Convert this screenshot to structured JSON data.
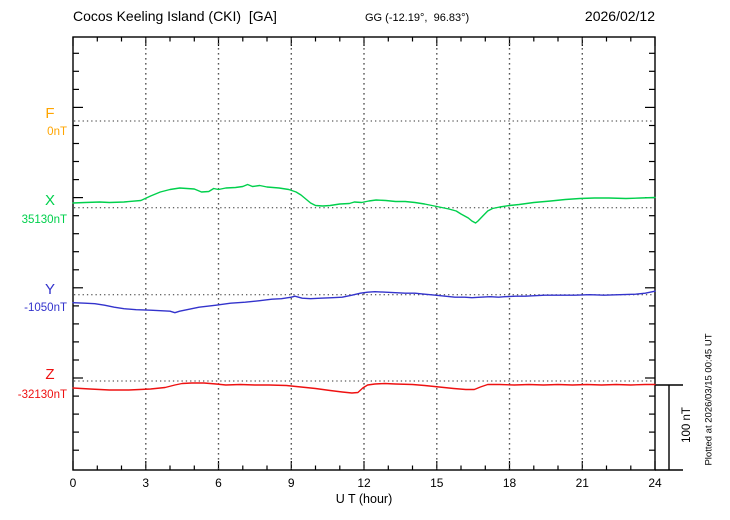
{
  "header": {
    "station_title": "Cocos Keeling Island (CKI)  [GA]",
    "coords": "GG (-12.19°,  96.83°)",
    "date": "2026/02/12"
  },
  "axes": {
    "x_label": "U T (hour)",
    "x_ticks": [
      "0",
      "3",
      "6",
      "9",
      "12",
      "15",
      "18",
      "21",
      "24"
    ],
    "x_major_step_hours": 3,
    "x_minor_step_hours": 1,
    "scale_bar_label": "100 nT"
  },
  "footer": {
    "plotted_note": "Plotted at 2026/03/15 00:45 UT"
  },
  "chart_data": {
    "type": "line",
    "title": "Cocos Keeling Island (CKI) [GA] magnetogram 2026/02/12",
    "xlabel": "U T (hour)",
    "x_range": [
      0,
      24
    ],
    "grid": "dotted vertical gridlines every 3 hours; dotted horizontal baseline per component",
    "legend_position": "left margin component labels",
    "scale_bar": {
      "label": "100 nT",
      "nT": 100
    },
    "series": [
      {
        "name": "F",
        "baseline_label": "0nT",
        "baseline_nT": 0,
        "color": "#FFA500",
        "note": "no trace plotted (flat at baseline)",
        "points": []
      },
      {
        "name": "X",
        "baseline_label": "35130nT",
        "baseline_nT": 35130,
        "color": "#00D04C",
        "points": [
          [
            0,
            5.4
          ],
          [
            0.5,
            6
          ],
          [
            1.1,
            6.6
          ],
          [
            1.5,
            6
          ],
          [
            2.1,
            6.6
          ],
          [
            2.8,
            8.3
          ],
          [
            3.2,
            13.5
          ],
          [
            3.6,
            18.1
          ],
          [
            4,
            21
          ],
          [
            4.4,
            22.7
          ],
          [
            4.7,
            22.1
          ],
          [
            5,
            21.6
          ],
          [
            5.3,
            18.1
          ],
          [
            5.6,
            18.7
          ],
          [
            5.8,
            22.1
          ],
          [
            6,
            21
          ],
          [
            6.3,
            22.7
          ],
          [
            6.7,
            23.3
          ],
          [
            7,
            24.4
          ],
          [
            7.2,
            26.8
          ],
          [
            7.4,
            24.4
          ],
          [
            7.7,
            25.6
          ],
          [
            8,
            23.9
          ],
          [
            8.5,
            22.7
          ],
          [
            8.9,
            21
          ],
          [
            9.2,
            18.1
          ],
          [
            9.4,
            14.6
          ],
          [
            9.6,
            10
          ],
          [
            9.8,
            5.4
          ],
          [
            10,
            2.5
          ],
          [
            10.3,
            2
          ],
          [
            10.6,
            2.5
          ],
          [
            11,
            4.3
          ],
          [
            11.4,
            4.8
          ],
          [
            11.6,
            6.6
          ],
          [
            11.9,
            6
          ],
          [
            12.2,
            7.7
          ],
          [
            12.5,
            8.9
          ],
          [
            12.9,
            8.3
          ],
          [
            13.3,
            7.2
          ],
          [
            13.7,
            7.2
          ],
          [
            14.1,
            6
          ],
          [
            14.5,
            4.3
          ],
          [
            14.8,
            2.5
          ],
          [
            15.1,
            0.8
          ],
          [
            15.5,
            -1.5
          ],
          [
            15.8,
            -3.8
          ],
          [
            16,
            -7.3
          ],
          [
            16.3,
            -11.9
          ],
          [
            16.45,
            -15.3
          ],
          [
            16.6,
            -17.6
          ],
          [
            16.7,
            -15.3
          ],
          [
            16.9,
            -9.6
          ],
          [
            17.1,
            -3.8
          ],
          [
            17.3,
            -0.9
          ],
          [
            17.6,
            0.8
          ],
          [
            18,
            2.5
          ],
          [
            18.4,
            3.7
          ],
          [
            19,
            6
          ],
          [
            19.7,
            7.7
          ],
          [
            20.3,
            9.5
          ],
          [
            20.9,
            10.6
          ],
          [
            21.5,
            11.2
          ],
          [
            22.1,
            11.2
          ],
          [
            22.8,
            10.6
          ],
          [
            23.4,
            11.2
          ],
          [
            24,
            11.8
          ]
        ]
      },
      {
        "name": "Y",
        "baseline_label": "-1050nT",
        "baseline_nT": -1050,
        "color": "#3333CC",
        "points": [
          [
            0,
            -9.2
          ],
          [
            0.5,
            -9.8
          ],
          [
            0.9,
            -10.4
          ],
          [
            1.3,
            -12.1
          ],
          [
            1.7,
            -14.4
          ],
          [
            2.1,
            -16.1
          ],
          [
            2.6,
            -17.3
          ],
          [
            3.2,
            -17.9
          ],
          [
            3.6,
            -18.5
          ],
          [
            4,
            -19
          ],
          [
            4.2,
            -20.8
          ],
          [
            4.4,
            -19
          ],
          [
            4.8,
            -16.7
          ],
          [
            5.2,
            -14.4
          ],
          [
            5.9,
            -12.1
          ],
          [
            6.5,
            -9.8
          ],
          [
            7.1,
            -8.7
          ],
          [
            7.7,
            -6.9
          ],
          [
            8.2,
            -5.2
          ],
          [
            8.6,
            -4.6
          ],
          [
            9,
            -2.9
          ],
          [
            9.15,
            -1.7
          ],
          [
            9.45,
            -4
          ],
          [
            9.8,
            -4.6
          ],
          [
            10.2,
            -4
          ],
          [
            10.7,
            -3.5
          ],
          [
            11.1,
            -2.9
          ],
          [
            11.5,
            -0.6
          ],
          [
            11.85,
            1.7
          ],
          [
            12.15,
            2.9
          ],
          [
            12.45,
            3.5
          ],
          [
            12.9,
            2.9
          ],
          [
            13.3,
            2.3
          ],
          [
            13.7,
            1.7
          ],
          [
            14.1,
            1.7
          ],
          [
            14.5,
            0.6
          ],
          [
            14.95,
            -0.6
          ],
          [
            15.35,
            -1.7
          ],
          [
            15.75,
            -2.9
          ],
          [
            16.15,
            -2.9
          ],
          [
            16.45,
            -3.5
          ],
          [
            16.8,
            -2.9
          ],
          [
            17.2,
            -2.3
          ],
          [
            17.55,
            -2.9
          ],
          [
            17.8,
            -2.3
          ],
          [
            18.25,
            -1.7
          ],
          [
            18.65,
            -1.7
          ],
          [
            19.05,
            -1.2
          ],
          [
            19.45,
            -0.6
          ],
          [
            20.1,
            -0.6
          ],
          [
            20.7,
            -0.6
          ],
          [
            21.3,
            0
          ],
          [
            21.9,
            -0.6
          ],
          [
            22.55,
            0
          ],
          [
            23.2,
            0.6
          ],
          [
            23.6,
            1.7
          ],
          [
            24,
            4
          ]
        ]
      },
      {
        "name": "Z",
        "baseline_label": "-32130nT",
        "baseline_nT": -32130,
        "color": "#EE1111",
        "points": [
          [
            0,
            -8.1
          ],
          [
            0.7,
            -9.2
          ],
          [
            1.5,
            -10.4
          ],
          [
            2.3,
            -10.4
          ],
          [
            3.2,
            -9.2
          ],
          [
            3.8,
            -7.5
          ],
          [
            4.2,
            -4.6
          ],
          [
            4.5,
            -2.9
          ],
          [
            4.9,
            -2.3
          ],
          [
            5.4,
            -2.3
          ],
          [
            5.9,
            -3.5
          ],
          [
            6.3,
            -4.6
          ],
          [
            6.9,
            -4
          ],
          [
            7.5,
            -4.6
          ],
          [
            8.1,
            -4.6
          ],
          [
            8.8,
            -5.2
          ],
          [
            9.4,
            -6.9
          ],
          [
            10,
            -8.6
          ],
          [
            10.6,
            -11
          ],
          [
            11.1,
            -12.7
          ],
          [
            11.5,
            -13.8
          ],
          [
            11.75,
            -13.3
          ],
          [
            11.95,
            -8.1
          ],
          [
            12.15,
            -4.6
          ],
          [
            12.45,
            -3.5
          ],
          [
            12.85,
            -2.9
          ],
          [
            13.3,
            -3.5
          ],
          [
            14,
            -4
          ],
          [
            14.5,
            -5.2
          ],
          [
            15.1,
            -6.9
          ],
          [
            15.7,
            -8.6
          ],
          [
            16.2,
            -9.8
          ],
          [
            16.55,
            -9.8
          ],
          [
            16.8,
            -6.9
          ],
          [
            17.1,
            -4
          ],
          [
            17.6,
            -4
          ],
          [
            18.2,
            -4.6
          ],
          [
            18.8,
            -4
          ],
          [
            19.4,
            -4.6
          ],
          [
            20,
            -4
          ],
          [
            20.6,
            -4.6
          ],
          [
            21.2,
            -4
          ],
          [
            21.8,
            -4.6
          ],
          [
            22.4,
            -4
          ],
          [
            23,
            -4.6
          ],
          [
            23.6,
            -4
          ],
          [
            24,
            -4
          ]
        ]
      }
    ]
  }
}
